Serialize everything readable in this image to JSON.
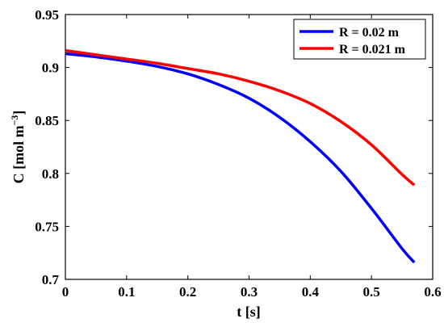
{
  "chart_data": {
    "type": "line",
    "xlabel": "t [s]",
    "ylabel_main": "C [mol m",
    "ylabel_exp": "−3",
    "ylabel_close": "]",
    "xlim": [
      0,
      0.6
    ],
    "ylim": [
      0.7,
      0.95
    ],
    "x_ticks": [
      0,
      0.1,
      0.2,
      0.3,
      0.4,
      0.5,
      0.6
    ],
    "x_tick_labels": [
      "0",
      "0.1",
      "0.2",
      "0.3",
      "0.4",
      "0.5",
      "0.6"
    ],
    "y_ticks": [
      0.7,
      0.75,
      0.8,
      0.85,
      0.9,
      0.95
    ],
    "y_tick_labels": [
      "0.7",
      "0.75",
      "0.8",
      "0.85",
      "0.9",
      "0.95"
    ],
    "grid": false,
    "legend_position": "top-right",
    "series": [
      {
        "name": "R = 0.02 m",
        "color": "#0000ff",
        "x": [
          0,
          0.05,
          0.1,
          0.15,
          0.2,
          0.25,
          0.3,
          0.35,
          0.4,
          0.45,
          0.5,
          0.55,
          0.57
        ],
        "y": [
          0.913,
          0.91,
          0.906,
          0.901,
          0.894,
          0.884,
          0.871,
          0.853,
          0.83,
          0.802,
          0.767,
          0.729,
          0.716
        ]
      },
      {
        "name": "R = 0.021 m",
        "color": "#ff0000",
        "x": [
          0,
          0.05,
          0.1,
          0.15,
          0.2,
          0.25,
          0.3,
          0.35,
          0.4,
          0.45,
          0.5,
          0.55,
          0.57
        ],
        "y": [
          0.916,
          0.912,
          0.908,
          0.904,
          0.899,
          0.894,
          0.887,
          0.878,
          0.866,
          0.849,
          0.827,
          0.799,
          0.789
        ]
      }
    ]
  }
}
